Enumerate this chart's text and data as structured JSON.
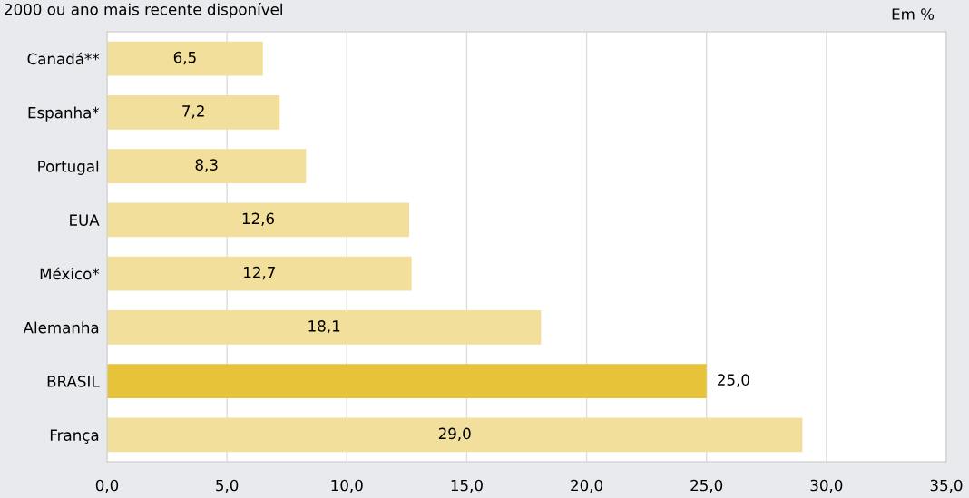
{
  "chart_data": {
    "type": "bar",
    "orientation": "horizontal",
    "title": "2000 ou ano mais recente disponível",
    "annotations": [
      "Em %"
    ],
    "categories": [
      "Canadá**",
      "Espanha*",
      "Portugal",
      "EUA",
      "México*",
      "Alemanha",
      "BRASIL",
      "França"
    ],
    "values": [
      6.5,
      7.2,
      8.3,
      12.6,
      12.7,
      18.1,
      25.0,
      29.0
    ],
    "colors": [
      "#f2df9b",
      "#f2df9b",
      "#f2df9b",
      "#f2df9b",
      "#f2df9b",
      "#f2df9b",
      "#e6c339",
      "#f2df9b"
    ],
    "value_labels": [
      "6,5",
      "7,2",
      "8,3",
      "12,6",
      "12,7",
      "18,1",
      "25,0",
      "29,0"
    ],
    "xlim": [
      0,
      35
    ],
    "xticks": [
      {
        "value": 0,
        "label": "0,0"
      },
      {
        "value": 5,
        "label": "5,0"
      },
      {
        "value": 10,
        "label": "10,0"
      },
      {
        "value": 15,
        "label": "15,0"
      },
      {
        "value": 20,
        "label": "20,0"
      },
      {
        "value": 25,
        "label": "25,0"
      },
      {
        "value": 30,
        "label": "30,0"
      },
      {
        "value": 35,
        "label": "35,0"
      }
    ],
    "grid": "x"
  }
}
